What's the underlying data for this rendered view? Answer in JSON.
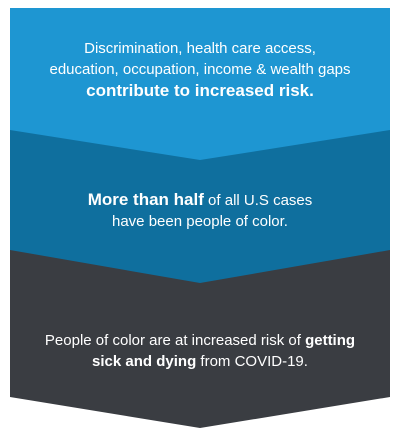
{
  "steps": [
    {
      "color": "#1e96d2",
      "line1": "Discrimination, health care access,",
      "line2": "education, occupation, income & wealth gaps",
      "bold": "contribute to increased risk."
    },
    {
      "color": "#0f6f9e",
      "bold": "More than half",
      "line1_rest": " of all U.S cases",
      "line2": "have been people of color."
    },
    {
      "color": "#3a3d42",
      "line1_pre": "People of color are at increased risk of ",
      "bold1": "getting",
      "bold2": "sick and dying",
      "line2_rest": " from COVID-19."
    }
  ]
}
